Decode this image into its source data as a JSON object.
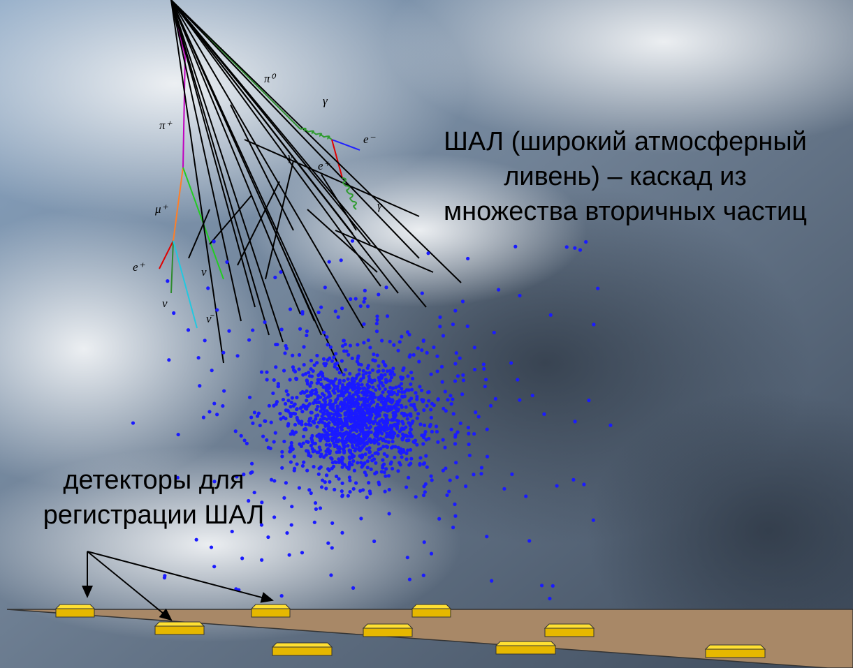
{
  "caption": {
    "lines": [
      "ШАЛ (широкий атмосферный",
      "ливень) – каскад из",
      "множества вторичных частиц"
    ]
  },
  "detectors_label": {
    "lines": [
      "детекторы для",
      "регистрации ШАЛ"
    ]
  },
  "particles": [
    {
      "label": "π⁰"
    },
    {
      "label": "γ"
    },
    {
      "label": "e⁻"
    },
    {
      "label": "γ"
    },
    {
      "label": "e⁺"
    },
    {
      "label": "γ"
    },
    {
      "label": "π⁺"
    },
    {
      "label": "μ⁺"
    },
    {
      "label": "e⁺"
    },
    {
      "label": "ν"
    },
    {
      "label": "ν"
    },
    {
      "label": "ν̄"
    }
  ]
}
